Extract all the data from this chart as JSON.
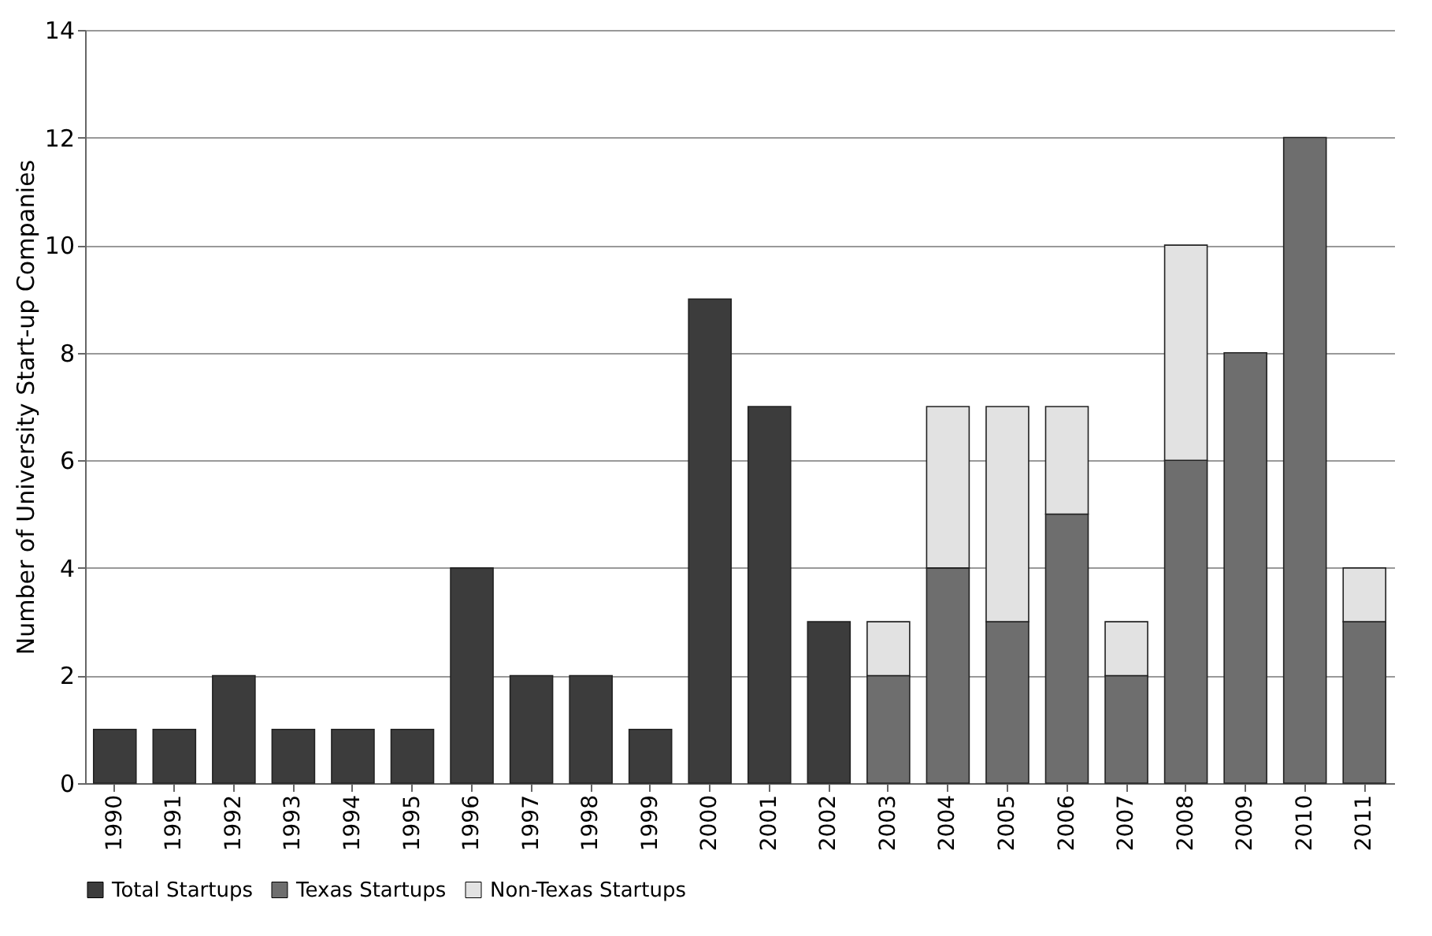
{
  "chart_data": {
    "type": "bar",
    "stacked": true,
    "ylabel": "Number of University Start-up Companies",
    "categories": [
      "1990",
      "1991",
      "1992",
      "1993",
      "1994",
      "1995",
      "1996",
      "1997",
      "1998",
      "1999",
      "2000",
      "2001",
      "2002",
      "2003",
      "2004",
      "2005",
      "2006",
      "2007",
      "2008",
      "2009",
      "2010",
      "2011"
    ],
    "series": [
      {
        "name": "Total Startups",
        "color": "#3c3c3c",
        "values": [
          1,
          1,
          2,
          1,
          1,
          1,
          4,
          2,
          2,
          1,
          9,
          7,
          3,
          null,
          null,
          null,
          null,
          null,
          null,
          null,
          null,
          null
        ]
      },
      {
        "name": "Texas Startups",
        "color": "#6e6e6e",
        "values": [
          null,
          null,
          null,
          null,
          null,
          null,
          null,
          null,
          null,
          null,
          null,
          null,
          null,
          2,
          4,
          3,
          5,
          2,
          6,
          8,
          12,
          3
        ]
      },
      {
        "name": "Non-Texas Startups",
        "color": "#e2e2e2",
        "values": [
          null,
          null,
          null,
          null,
          null,
          null,
          null,
          null,
          null,
          null,
          null,
          null,
          null,
          1,
          3,
          4,
          2,
          1,
          4,
          null,
          null,
          1
        ]
      }
    ],
    "ylim": [
      0,
      14
    ],
    "yticks": [
      0,
      2,
      4,
      6,
      8,
      10,
      12,
      14
    ],
    "grid": "y",
    "legend": "bottom"
  }
}
